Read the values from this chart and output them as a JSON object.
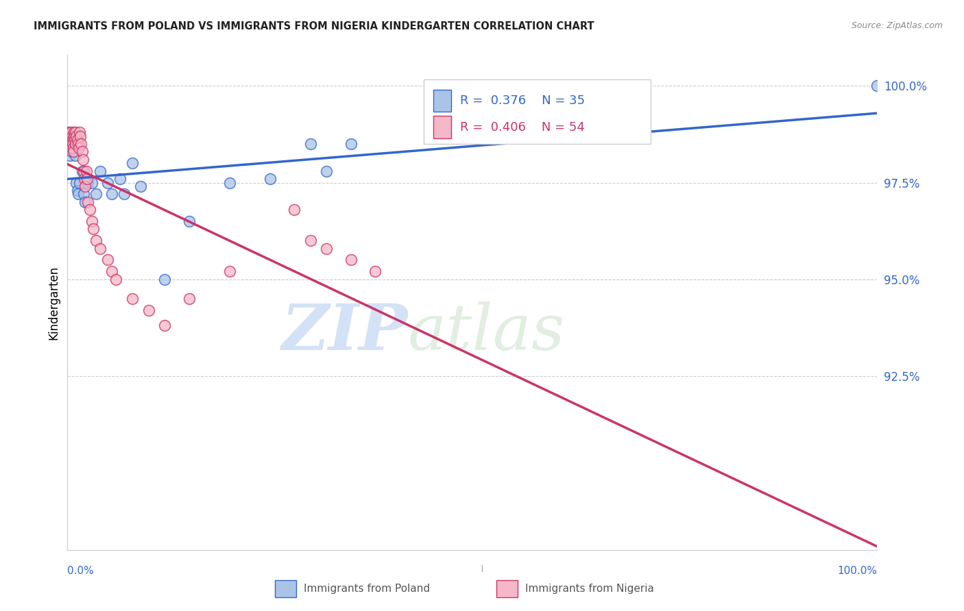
{
  "title": "IMMIGRANTS FROM POLAND VS IMMIGRANTS FROM NIGERIA KINDERGARTEN CORRELATION CHART",
  "source": "Source: ZipAtlas.com",
  "ylabel": "Kindergarten",
  "R_poland": 0.376,
  "N_poland": 35,
  "R_nigeria": 0.406,
  "N_nigeria": 54,
  "color_poland": "#aac4e8",
  "color_nigeria": "#f4b8c8",
  "line_color_poland": "#3366cc",
  "line_color_nigeria": "#cc3366",
  "watermark_zip": "ZIP",
  "watermark_atlas": "atlas",
  "legend_label1": "Immigrants from Poland",
  "legend_label2": "Immigrants from Nigeria",
  "poland_x": [
    0.0,
    0.2,
    0.3,
    0.4,
    0.5,
    0.6,
    0.7,
    0.8,
    0.9,
    1.0,
    1.1,
    1.2,
    1.3,
    1.5,
    1.8,
    2.0,
    2.2,
    2.5,
    3.0,
    3.5,
    4.0,
    5.0,
    5.5,
    6.5,
    7.0,
    8.0,
    9.0,
    12.0,
    15.0,
    20.0,
    25.0,
    30.0,
    32.0,
    35.0,
    100.0
  ],
  "poland_y": [
    98.5,
    98.4,
    98.2,
    98.5,
    98.3,
    98.4,
    98.5,
    98.4,
    98.3,
    98.2,
    97.5,
    97.3,
    97.2,
    97.5,
    97.8,
    97.2,
    97.0,
    97.5,
    97.5,
    97.2,
    97.8,
    97.5,
    97.2,
    97.6,
    97.2,
    98.0,
    97.4,
    95.0,
    96.5,
    97.5,
    97.6,
    98.5,
    97.8,
    98.5,
    100.0
  ],
  "nigeria_x": [
    0.0,
    0.05,
    0.1,
    0.15,
    0.2,
    0.25,
    0.3,
    0.35,
    0.4,
    0.45,
    0.5,
    0.55,
    0.6,
    0.65,
    0.7,
    0.75,
    0.8,
    0.85,
    0.9,
    0.95,
    1.0,
    1.1,
    1.2,
    1.3,
    1.4,
    1.5,
    1.6,
    1.7,
    1.8,
    1.9,
    2.0,
    2.1,
    2.2,
    2.3,
    2.4,
    2.5,
    2.8,
    3.0,
    3.2,
    3.5,
    4.0,
    5.0,
    5.5,
    6.0,
    8.0,
    10.0,
    12.0,
    15.0,
    20.0,
    28.0,
    30.0,
    32.0,
    35.0,
    38.0
  ],
  "nigeria_y": [
    98.6,
    98.8,
    98.5,
    98.7,
    98.6,
    98.5,
    98.8,
    98.7,
    98.5,
    98.4,
    98.8,
    98.7,
    98.6,
    98.5,
    98.4,
    98.3,
    98.8,
    98.7,
    98.6,
    98.5,
    98.8,
    98.7,
    98.6,
    98.5,
    98.4,
    98.8,
    98.7,
    98.5,
    98.3,
    98.1,
    97.8,
    97.6,
    97.4,
    97.8,
    97.6,
    97.0,
    96.8,
    96.5,
    96.3,
    96.0,
    95.8,
    95.5,
    95.2,
    95.0,
    94.5,
    94.2,
    93.8,
    94.5,
    95.2,
    96.8,
    96.0,
    95.8,
    95.5,
    95.2
  ],
  "xlim": [
    0.0,
    100.0
  ],
  "ylim": [
    88.0,
    100.8
  ],
  "yticks": [
    92.5,
    95.0,
    97.5,
    100.0
  ],
  "ytick_labels": [
    "92.5%",
    "95.0%",
    "97.5%",
    "100.0%"
  ],
  "xtick_positions": [
    0,
    25,
    50,
    75,
    100
  ]
}
